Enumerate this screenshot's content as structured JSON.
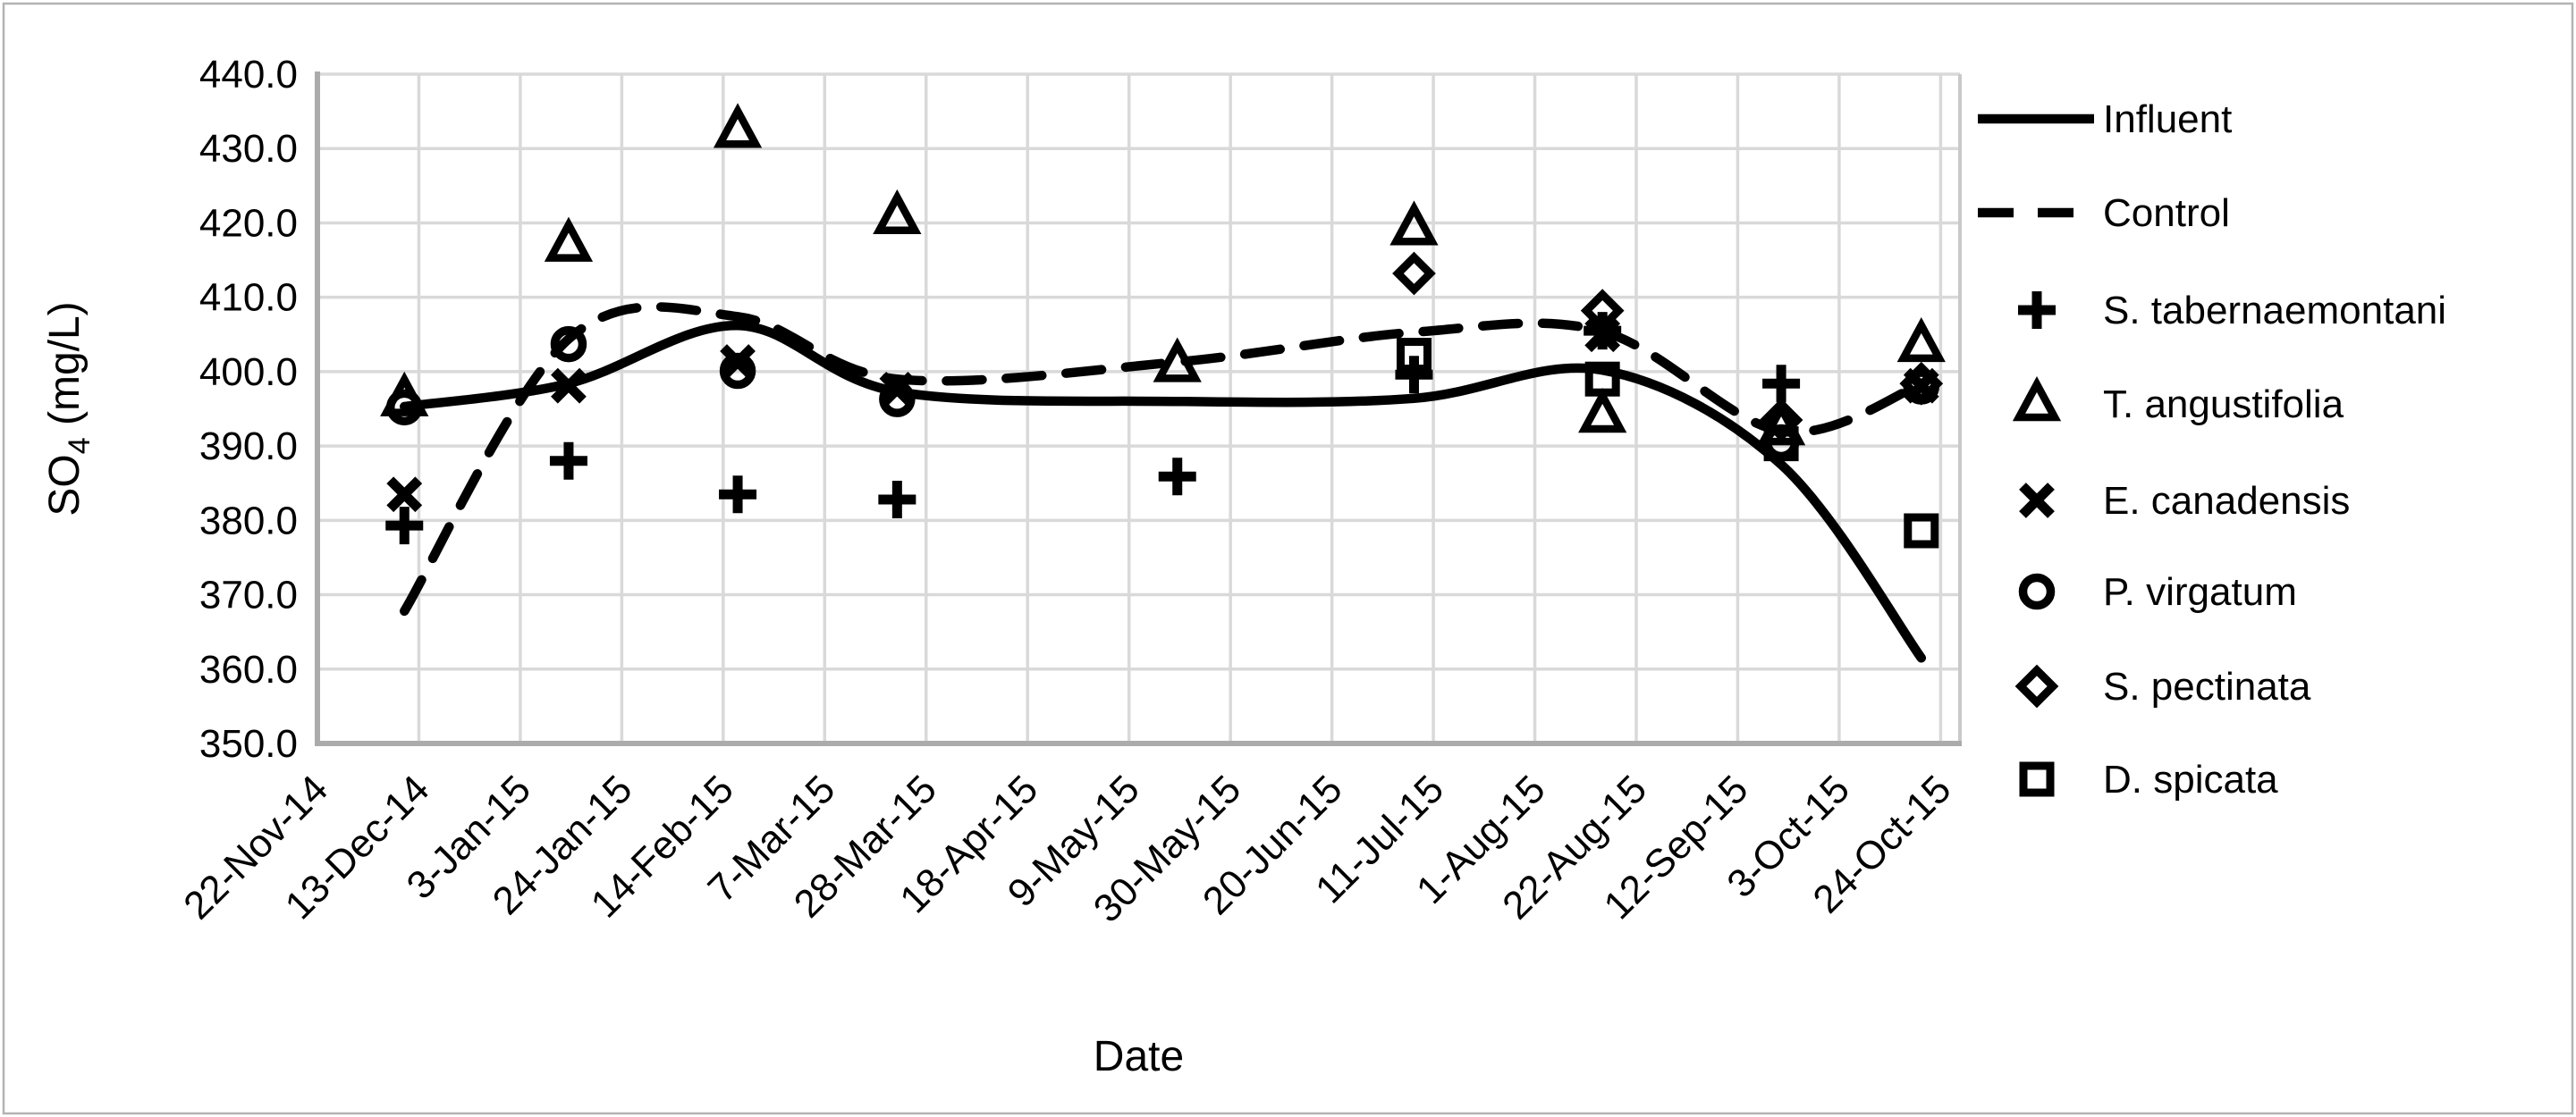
{
  "figure": {
    "background": "#ffffff",
    "border_color": "#b3b3b3"
  },
  "chart_data": {
    "type": "line+scatter",
    "title": "",
    "xlabel": "Date",
    "ylabel": "SO4 (mg/L)",
    "ylabel_parts": {
      "main": "SO",
      "sub": "4",
      "rest": " (mg/L)"
    },
    "ylim": [
      350,
      440
    ],
    "ytick_step": 10,
    "ytick_labels": [
      "440.0",
      "430.0",
      "420.0",
      "410.0",
      "400.0",
      "390.0",
      "380.0",
      "370.0",
      "360.0",
      "350.0"
    ],
    "x_axis": {
      "type": "date",
      "tick_labels": [
        "22-Nov-14",
        "13-Dec-14",
        "3-Jan-15",
        "24-Jan-15",
        "14-Feb-15",
        "7-Mar-15",
        "28-Mar-15",
        "18-Apr-15",
        "9-May-15",
        "30-May-15",
        "20-Jun-15",
        "11-Jul-15",
        "1-Aug-15",
        "22-Aug-15",
        "12-Sep-15",
        "3-Oct-15",
        "24-Oct-15"
      ],
      "tick_days": [
        0,
        21,
        42,
        63,
        84,
        105,
        126,
        147,
        168,
        189,
        210,
        231,
        252,
        273,
        294,
        315,
        336
      ],
      "domain_days": [
        0,
        340
      ]
    },
    "grid": true,
    "legend_position": "right",
    "colors": {
      "data": "#000000",
      "grid": "#d9d9d9",
      "axis": "#ababab",
      "plot_edge": "#c9c9c9"
    },
    "sample_days": [
      18,
      52,
      87,
      120,
      178,
      227,
      266,
      303,
      332
    ],
    "sample_dates_approx": [
      "9-Dec-14",
      "13-Jan-15",
      "17-Feb-15",
      "22-Mar-15",
      "19-May-15",
      "6-Jul-15",
      "15-Aug-15",
      "20-Sep-15",
      "20-Oct-15"
    ],
    "series": [
      {
        "name": "Influent",
        "kind": "line",
        "style": "solid",
        "marker": null,
        "points": [
          [
            18,
            395.3
          ],
          [
            52,
            398.4
          ],
          [
            87,
            406.2
          ],
          [
            120,
            397.3
          ],
          [
            178,
            396.0
          ],
          [
            227,
            396.4
          ],
          [
            266,
            400.2
          ],
          [
            303,
            387.5
          ],
          [
            332,
            361.5
          ]
        ]
      },
      {
        "name": "Control",
        "kind": "line",
        "style": "dashed",
        "marker": null,
        "points": [
          [
            18,
            367.8
          ],
          [
            52,
            404.4
          ],
          [
            87,
            407.4
          ],
          [
            120,
            399.0
          ],
          [
            178,
            401.3
          ],
          [
            227,
            405.3
          ],
          [
            266,
            405.4
          ],
          [
            303,
            392.0
          ],
          [
            332,
            398.3
          ]
        ]
      },
      {
        "name": "S. tabernaemontani",
        "kind": "scatter",
        "marker": "plus",
        "points": [
          [
            18,
            379.3
          ],
          [
            52,
            388.0
          ],
          [
            87,
            383.5
          ],
          [
            120,
            382.8
          ],
          [
            178,
            385.9
          ],
          [
            227,
            399.6
          ],
          [
            266,
            405.5
          ],
          [
            303,
            398.4
          ]
        ]
      },
      {
        "name": "T. angustifolia",
        "kind": "scatter",
        "marker": "triangle",
        "points": [
          [
            18,
            396.3
          ],
          [
            52,
            417.1
          ],
          [
            87,
            432.4
          ],
          [
            120,
            420.8
          ],
          [
            178,
            400.9
          ],
          [
            227,
            419.3
          ],
          [
            266,
            394.1
          ],
          [
            303,
            392.4
          ],
          [
            332,
            403.6
          ]
        ]
      },
      {
        "name": "E. canadensis",
        "kind": "scatter",
        "marker": "x",
        "points": [
          [
            18,
            383.5
          ],
          [
            52,
            398.1
          ],
          [
            87,
            401.3
          ],
          [
            120,
            397.6
          ],
          [
            266,
            405.0
          ],
          [
            332,
            398.1
          ]
        ]
      },
      {
        "name": "P. virgatum",
        "kind": "scatter",
        "marker": "circle",
        "points": [
          [
            18,
            395.2
          ],
          [
            52,
            403.7
          ],
          [
            87,
            400.1
          ],
          [
            120,
            396.3
          ],
          [
            303,
            390.5
          ],
          [
            332,
            398.0
          ]
        ]
      },
      {
        "name": "S. pectinata",
        "kind": "scatter",
        "marker": "diamond",
        "points": [
          [
            227,
            413.2
          ],
          [
            266,
            408.2
          ],
          [
            303,
            393.5
          ],
          [
            332,
            398.4
          ]
        ]
      },
      {
        "name": "D. spicata",
        "kind": "scatter",
        "marker": "square",
        "points": [
          [
            227,
            402.2
          ],
          [
            266,
            399.0
          ],
          [
            303,
            390.3
          ],
          [
            332,
            378.6
          ]
        ]
      }
    ]
  }
}
